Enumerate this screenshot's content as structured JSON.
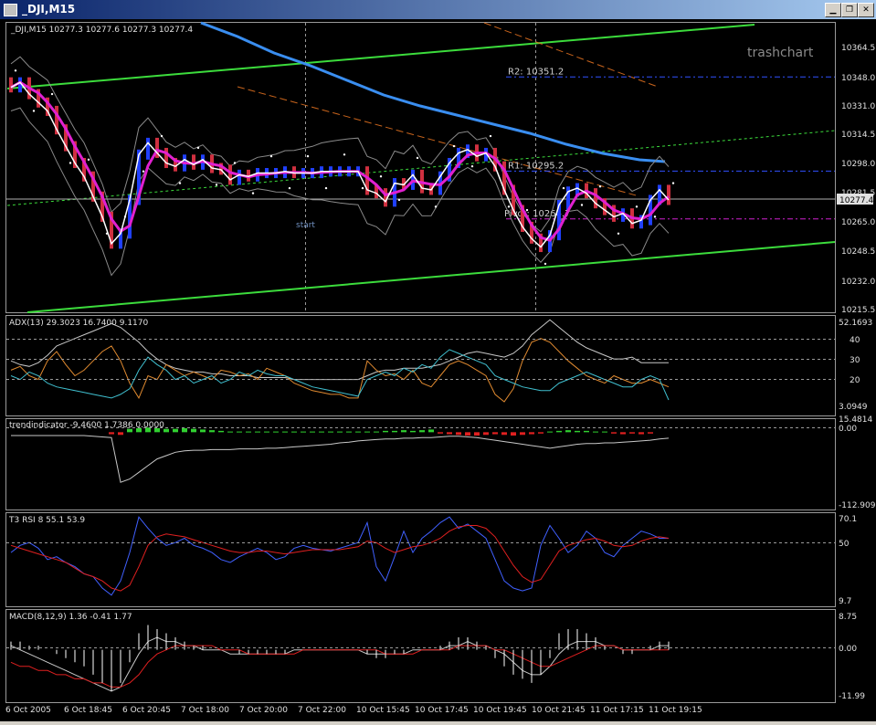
{
  "window": {
    "title": "_DJI,M15",
    "minimize_label": "▁",
    "restore_label": "❐",
    "close_label": "✕"
  },
  "watermark": "trashchart",
  "chart_data": [
    {
      "type": "candlestick",
      "panel": "price",
      "header": "_DJI,M15  10277.3 10277.6 10277.3 10277.4",
      "current_price_label": "10277.4",
      "y_ticks": [
        "10364.5",
        "10348.0",
        "10331.0",
        "10314.5",
        "10298.0",
        "10281.5",
        "10265.0",
        "10248.5",
        "10232.0",
        "10215.5"
      ],
      "ylim": [
        10215.5,
        10372
      ],
      "pivot_levels": [
        {
          "label": "R2: 10351.2",
          "value": 10351.2
        },
        {
          "label": "R1: 10295.2",
          "value": 10295.2
        },
        {
          "label": "Pivot: 10266.7",
          "value": 10266.7
        }
      ],
      "annotation": "start",
      "close_series": [
        10345,
        10348,
        10341,
        10336,
        10331,
        10320,
        10310,
        10300,
        10292,
        10280,
        10268,
        10252,
        10258,
        10278,
        10305,
        10312,
        10306,
        10300,
        10298,
        10302,
        10299,
        10302,
        10297,
        10296,
        10290,
        10293,
        10292,
        10294,
        10294,
        10294,
        10295,
        10294,
        10294,
        10294,
        10295,
        10295,
        10295,
        10295,
        10295,
        10284,
        10282,
        10277,
        10288,
        10287,
        10293,
        10285,
        10284,
        10292,
        10300,
        10306,
        10308,
        10304,
        10306,
        10298,
        10284,
        10272,
        10262,
        10255,
        10250,
        10257,
        10275,
        10283,
        10285,
        10282,
        10276,
        10272,
        10268,
        10270,
        10264,
        10266,
        10278,
        10284,
        10278
      ],
      "x_tick_labels": [
        "6 Oct 2005",
        "6 Oct 18:45",
        "6 Oct 20:45",
        "7 Oct 18:00",
        "7 Oct 20:00",
        "7 Oct 22:00",
        "10 Oct 15:45",
        "10 Oct 17:45",
        "10 Oct 19:45",
        "10 Oct 21:45",
        "11 Oct 17:15",
        "11 Oct 19:15"
      ]
    },
    {
      "type": "line",
      "panel": "adx",
      "header": "ADX(13) 29.3023 16.7400 9.1170",
      "y_ticks": [
        "52.1693",
        "40",
        "30",
        "20",
        "3.0949"
      ],
      "ylim": [
        3.0949,
        52.1693
      ],
      "series": [
        {
          "values": [
            30,
            28,
            27,
            29,
            33,
            38,
            40,
            42,
            44,
            46,
            48,
            50,
            48,
            44,
            40,
            35,
            31,
            28,
            26,
            25,
            24,
            24,
            23,
            23,
            22,
            22,
            22,
            21,
            21,
            21,
            21,
            20,
            20,
            20,
            20,
            20,
            20,
            20,
            20,
            22,
            24,
            25,
            25,
            26,
            26,
            26,
            27,
            28,
            30,
            32,
            34,
            35,
            34,
            33,
            32,
            34,
            38,
            44,
            48,
            52,
            48,
            44,
            40,
            37,
            35,
            33,
            31,
            31,
            32,
            29,
            29,
            29,
            29
          ]
        },
        {
          "values": [
            25,
            27,
            22,
            20,
            30,
            35,
            28,
            22,
            25,
            30,
            35,
            38,
            30,
            18,
            10,
            22,
            20,
            28,
            25,
            22,
            24,
            22,
            20,
            25,
            24,
            22,
            23,
            20,
            26,
            24,
            22,
            18,
            16,
            14,
            13,
            12,
            12,
            10,
            10,
            30,
            25,
            22,
            23,
            20,
            25,
            18,
            16,
            22,
            28,
            30,
            28,
            25,
            22,
            12,
            8,
            15,
            30,
            40,
            42,
            40,
            35,
            30,
            26,
            22,
            20,
            18,
            22,
            20,
            18,
            18,
            20,
            18,
            16
          ]
        },
        {
          "values": [
            22,
            20,
            24,
            22,
            18,
            16,
            15,
            14,
            13,
            12,
            11,
            10,
            12,
            15,
            25,
            32,
            28,
            25,
            20,
            22,
            18,
            20,
            22,
            18,
            20,
            24,
            22,
            25,
            23,
            22,
            22,
            20,
            18,
            16,
            15,
            14,
            13,
            12,
            11,
            20,
            22,
            24,
            22,
            26,
            24,
            28,
            26,
            32,
            36,
            34,
            32,
            30,
            28,
            22,
            20,
            18,
            16,
            15,
            14,
            14,
            18,
            20,
            22,
            24,
            22,
            20,
            18,
            16,
            16,
            20,
            22,
            20,
            9
          ]
        }
      ]
    },
    {
      "type": "bar",
      "panel": "trend",
      "header": "trendindicator -9.4600 1.7386 0.0000",
      "y_ticks": [
        "15.4814",
        "0.00",
        "-112.909"
      ],
      "ylim": [
        -112.909,
        15.4814
      ],
      "values": [
        0,
        0,
        0,
        0,
        0,
        0,
        0,
        0,
        0,
        0,
        0,
        -3,
        -4,
        5,
        6,
        7,
        6,
        5,
        5,
        6,
        5,
        4,
        3,
        2,
        1,
        1,
        1,
        1,
        1,
        1,
        1,
        1,
        1,
        1,
        1,
        1,
        1,
        1,
        1,
        1,
        1,
        2,
        2,
        3,
        2,
        3,
        4,
        -2,
        -3,
        -4,
        -5,
        -5,
        -4,
        -3,
        -4,
        -5,
        -4,
        -3,
        -2,
        1,
        2,
        3,
        2,
        2,
        1,
        1,
        -2,
        -3,
        -2,
        -3,
        -2,
        0,
        0
      ],
      "line": [
        -5,
        -5,
        -5,
        -5,
        -5,
        -5,
        -5,
        -5,
        -5,
        -6,
        -7,
        -8,
        -75,
        -70,
        -60,
        -50,
        -40,
        -35,
        -30,
        -28,
        -27,
        -27,
        -26,
        -26,
        -26,
        -25,
        -25,
        -25,
        -24,
        -24,
        -23,
        -22,
        -21,
        -20,
        -19,
        -18,
        -16,
        -15,
        -13,
        -12,
        -11,
        -10,
        -10,
        -9,
        -9,
        -8,
        -8,
        -7,
        -6,
        -6,
        -7,
        -8,
        -10,
        -12,
        -14,
        -16,
        -18,
        -20,
        -22,
        -24,
        -22,
        -20,
        -18,
        -17,
        -17,
        -16,
        -16,
        -15,
        -14,
        -13,
        -12,
        -10,
        -9
      ]
    },
    {
      "type": "line",
      "panel": "rsi",
      "header": "T3 RSI 8 55.1 53.9",
      "y_ticks": [
        "70.1",
        "50",
        "9.7"
      ],
      "ylim": [
        9.7,
        70.1
      ],
      "series": [
        {
          "values": [
            45,
            50,
            52,
            48,
            40,
            42,
            38,
            35,
            30,
            28,
            20,
            15,
            25,
            45,
            70,
            62,
            55,
            50,
            52,
            55,
            50,
            48,
            45,
            40,
            38,
            42,
            45,
            48,
            45,
            40,
            42,
            48,
            50,
            48,
            47,
            46,
            48,
            50,
            52,
            66,
            35,
            25,
            42,
            60,
            45,
            55,
            60,
            66,
            70,
            62,
            65,
            60,
            55,
            40,
            25,
            20,
            18,
            20,
            50,
            64,
            55,
            45,
            50,
            60,
            55,
            45,
            42,
            50,
            55,
            60,
            58,
            55,
            55
          ]
        },
        {
          "values": [
            50,
            48,
            46,
            44,
            42,
            40,
            38,
            34,
            30,
            28,
            25,
            20,
            18,
            22,
            35,
            50,
            56,
            58,
            57,
            56,
            54,
            52,
            50,
            48,
            46,
            45,
            45,
            46,
            46,
            45,
            44,
            45,
            46,
            47,
            47,
            47,
            47,
            48,
            49,
            53,
            52,
            48,
            45,
            47,
            49,
            50,
            52,
            55,
            60,
            63,
            64,
            64,
            62,
            56,
            46,
            36,
            28,
            24,
            26,
            36,
            46,
            50,
            52,
            54,
            55,
            53,
            50,
            49,
            50,
            53,
            55,
            56,
            55
          ]
        }
      ]
    },
    {
      "type": "bar",
      "panel": "macd",
      "header": "MACD(8,12,9) 1.36 -0.41 1.77",
      "y_ticks": [
        "8.75",
        "0.00",
        "-11.99"
      ],
      "ylim": [
        -11.99,
        8.75
      ],
      "values": [
        2,
        2,
        1,
        1,
        0,
        -1,
        -2,
        -3,
        -4,
        -6,
        -8,
        -10,
        -8,
        -3,
        4,
        6,
        5,
        4,
        3,
        2,
        1,
        1,
        0,
        0,
        0,
        -1,
        -1,
        -1,
        -1,
        -1,
        -1,
        0,
        0,
        0,
        0,
        0,
        0,
        0,
        0,
        -1,
        -2,
        -2,
        -1,
        -1,
        0,
        0,
        0,
        1,
        2,
        3,
        3,
        2,
        1,
        -2,
        -4,
        -6,
        -7,
        -8,
        -6,
        -2,
        4,
        5,
        5,
        4,
        3,
        1,
        0,
        -1,
        -1,
        0,
        1,
        2,
        2
      ],
      "series": [
        {
          "values": [
            1,
            0,
            -1,
            -2,
            -3,
            -4,
            -5,
            -6,
            -7,
            -8,
            -9,
            -10,
            -9,
            -5,
            -1,
            2,
            3,
            2,
            2,
            1,
            1,
            0,
            0,
            0,
            -1,
            -1,
            -1,
            -1,
            -1,
            -1,
            -1,
            0,
            0,
            0,
            0,
            0,
            0,
            0,
            0,
            -1,
            -1,
            -1,
            -1,
            -1,
            0,
            0,
            0,
            0,
            1,
            1,
            2,
            1,
            1,
            0,
            -1,
            -3,
            -5,
            -6,
            -6,
            -4,
            -1,
            1,
            2,
            2,
            2,
            1,
            1,
            0,
            0,
            0,
            0,
            1,
            1
          ]
        },
        {
          "values": [
            -3,
            -4,
            -4,
            -5,
            -5,
            -6,
            -6,
            -7,
            -7,
            -8,
            -8,
            -9,
            -9,
            -8,
            -6,
            -3,
            -1,
            0,
            1,
            1,
            1,
            1,
            1,
            0,
            0,
            0,
            -1,
            -1,
            -1,
            -1,
            -1,
            -1,
            0,
            0,
            0,
            0,
            0,
            0,
            0,
            0,
            0,
            -1,
            -1,
            -1,
            -1,
            0,
            0,
            0,
            0,
            1,
            1,
            1,
            1,
            0,
            0,
            -1,
            -2,
            -3,
            -4,
            -4,
            -3,
            -2,
            -1,
            0,
            1,
            1,
            1,
            0,
            0,
            0,
            0,
            0,
            0
          ]
        }
      ]
    }
  ]
}
